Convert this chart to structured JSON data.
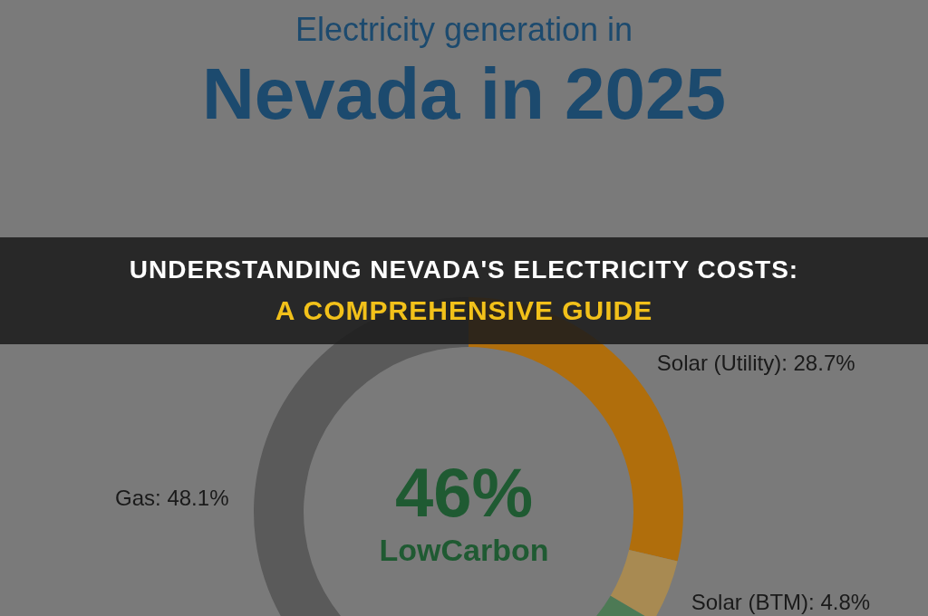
{
  "chart_data": {
    "type": "donut",
    "title": "Electricity generation in",
    "subtitle": "Nevada in 2025",
    "categories": [
      "Solar (Utility)",
      "Solar (BTM)",
      null,
      "Gas"
    ],
    "values": [
      28.7,
      4.8,
      18.4,
      48.1
    ],
    "value_labels": [
      "28.7%",
      "4.8%",
      null,
      "48.1%"
    ],
    "colors": [
      "#b06e0c",
      "#a88a52",
      "#4d7a55",
      "#5a5a5a"
    ],
    "legend": false,
    "annotations": [
      "46%",
      "LowCarbon",
      "UNDERSTANDING NEVADA'S ELECTRICITY COSTS:",
      "A COMPREHENSIVE GUIDE"
    ]
  }
}
